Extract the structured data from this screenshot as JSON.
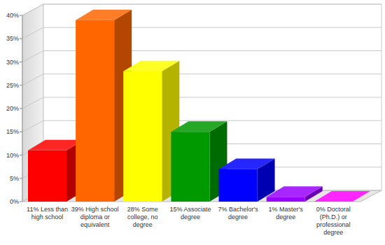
{
  "chart_data": {
    "type": "bar",
    "categories": [
      "11% Less than high school",
      "39% High school diploma or equivalent",
      "28% Some college, no degree",
      "15% Associate degree",
      "7% Bachelor's degree",
      "1% Master's degree",
      "0% Doctoral (Ph.D.) or professional degree"
    ],
    "values": [
      11,
      39,
      28,
      15,
      7,
      1,
      0
    ],
    "colors": [
      "#ff0000",
      "#ff6600",
      "#ffff00",
      "#009900",
      "#0000ff",
      "#9900ff",
      "#ff00ff"
    ],
    "ylim": [
      0,
      40
    ],
    "yticks": [
      {
        "value": 0,
        "label": "0%"
      },
      {
        "value": 5,
        "label": "5%"
      },
      {
        "value": 10,
        "label": "10%"
      },
      {
        "value": 15,
        "label": "15%"
      },
      {
        "value": 20,
        "label": "20%"
      },
      {
        "value": 25,
        "label": "25%"
      },
      {
        "value": 30,
        "label": "30%"
      },
      {
        "value": 35,
        "label": "35%"
      },
      {
        "value": 40,
        "label": "40%"
      }
    ],
    "grid": true
  }
}
